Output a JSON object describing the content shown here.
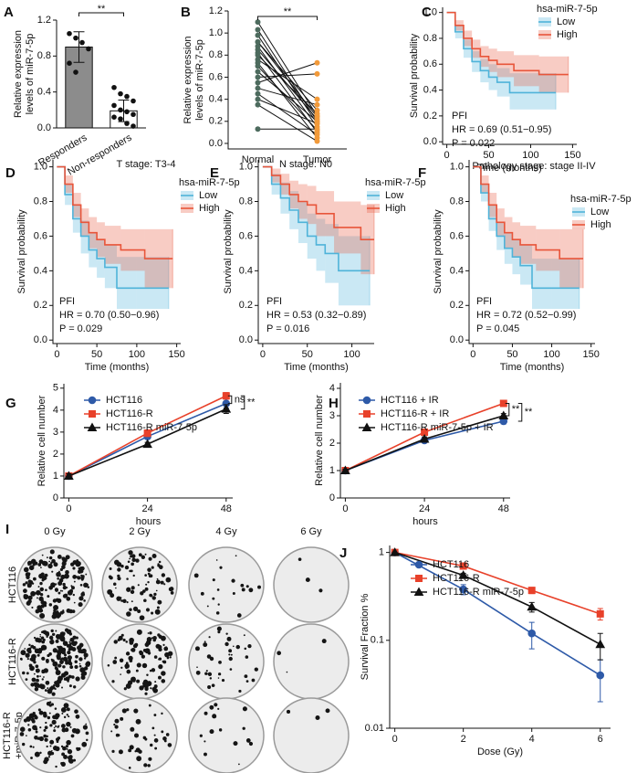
{
  "chart_data": [
    {
      "type": "bar",
      "panel_label": "A",
      "categories": [
        "Responders",
        "Non-responders"
      ],
      "values": [
        0.9,
        0.19
      ],
      "errors": [
        0.17,
        0.12
      ],
      "color": "#8c8c8c",
      "points": [
        [
          1.05,
          1.0,
          0.95,
          0.88,
          0.72,
          0.62
        ],
        [
          0.45,
          0.38,
          0.35,
          0.3,
          0.25,
          0.2,
          0.18,
          0.15,
          0.12,
          0.1,
          0.05,
          0.02
        ]
      ],
      "ylabel": [
        "Relative expression",
        "levels of miR-7-5p"
      ],
      "ylim": [
        0,
        1.2
      ],
      "yticks": [
        {
          "value": 0,
          "label": "0.0"
        },
        0.4,
        0.8,
        1.2
      ],
      "annotations": [
        "**"
      ]
    },
    {
      "type": "paired",
      "panel_label": "B",
      "categories": [
        "Normal",
        "Tumor"
      ],
      "point_colors": [
        "#4d6b5e",
        "#f29a3a"
      ],
      "normal": [
        1.1,
        1.03,
        0.98,
        0.92,
        0.88,
        0.85,
        0.82,
        0.8,
        0.76,
        0.73,
        0.7,
        0.65,
        0.6,
        0.55,
        0.5,
        0.45,
        0.4,
        0.35,
        0.13,
        0.92
      ],
      "tumor": [
        0.25,
        0.2,
        0.18,
        0.3,
        0.15,
        0.22,
        0.1,
        0.27,
        0.4,
        0.05,
        0.12,
        0.2,
        0.63,
        0.73,
        0.35,
        0.08,
        0.18,
        0.02,
        0.13,
        0.24
      ],
      "ylabel": [
        "Relative expression",
        "levels of miR-7-5p"
      ],
      "ylim": [
        -0.05,
        1.2
      ],
      "yticks": [
        {
          "value": 0,
          "label": "0.0"
        },
        0.2,
        0.4,
        0.6,
        0.8,
        {
          "value": 1,
          "label": "1.0"
        },
        1.2
      ],
      "annotations": [
        "**"
      ]
    },
    {
      "type": "survival",
      "panel_label": "C",
      "legend_title": "hsa-miR-7-5p",
      "annotations": [
        "PFI",
        "HR = 0.69 (0.51−0.95)",
        "P = 0.022"
      ],
      "xlabel": "Time (months)",
      "ylabel": "Survival probability",
      "xlim": [
        -5,
        155
      ],
      "xticks": [
        0,
        50,
        100,
        150
      ],
      "ylim": [
        -0.02,
        1.04
      ],
      "yticks": [
        {
          "value": 0,
          "label": "0.0"
        },
        0.2,
        0.4,
        0.6,
        0.8,
        {
          "value": 1,
          "label": "1.0"
        }
      ],
      "series": [
        {
          "name": "Low",
          "color": "#4fb3d9",
          "x": [
            0,
            10,
            20,
            30,
            40,
            50,
            60,
            75,
            100,
            130
          ],
          "values": [
            1,
            0.85,
            0.72,
            0.62,
            0.55,
            0.5,
            0.46,
            0.38,
            0.38,
            0.38
          ],
          "lower": [
            1,
            0.8,
            0.65,
            0.54,
            0.46,
            0.4,
            0.35,
            0.25,
            0.25,
            0.25
          ],
          "upper": [
            1,
            0.9,
            0.79,
            0.7,
            0.64,
            0.6,
            0.57,
            0.53,
            0.53,
            0.53
          ]
        },
        {
          "name": "High",
          "color": "#e8553a",
          "x": [
            0,
            10,
            20,
            30,
            40,
            50,
            60,
            80,
            110,
            145
          ],
          "values": [
            1,
            0.9,
            0.8,
            0.72,
            0.66,
            0.63,
            0.6,
            0.55,
            0.52,
            0.52
          ],
          "lower": [
            1,
            0.86,
            0.74,
            0.65,
            0.58,
            0.54,
            0.5,
            0.43,
            0.38,
            0.38
          ],
          "upper": [
            1,
            0.94,
            0.86,
            0.79,
            0.74,
            0.72,
            0.7,
            0.67,
            0.66,
            0.66
          ]
        }
      ]
    },
    {
      "type": "survival",
      "panel_label": "D",
      "subtitle": "T stage: T3-4",
      "legend_title": "hsa-miR-7-5p",
      "annotations": [
        "PFI",
        "HR = 0.70 (0.50−0.96)",
        "P = 0.029"
      ],
      "xlabel": "Time (months)",
      "ylabel": "Survival probability",
      "xlim": [
        -5,
        155
      ],
      "xticks": [
        0,
        50,
        100,
        150
      ],
      "ylim": [
        -0.02,
        1.04
      ],
      "yticks": [
        {
          "value": 0,
          "label": "0.0"
        },
        0.2,
        0.4,
        0.6,
        0.8,
        {
          "value": 1,
          "label": "1.0"
        }
      ],
      "series": [
        {
          "name": "Low",
          "color": "#4fb3d9",
          "x": [
            0,
            10,
            20,
            30,
            40,
            50,
            60,
            75,
            100,
            140
          ],
          "values": [
            1,
            0.84,
            0.7,
            0.6,
            0.52,
            0.47,
            0.42,
            0.3,
            0.3,
            0.3
          ],
          "lower": [
            1,
            0.78,
            0.62,
            0.5,
            0.42,
            0.36,
            0.3,
            0.18,
            0.18,
            0.18
          ],
          "upper": [
            1,
            0.9,
            0.78,
            0.69,
            0.62,
            0.58,
            0.55,
            0.48,
            0.48,
            0.48
          ]
        },
        {
          "name": "High",
          "color": "#e8553a",
          "x": [
            0,
            10,
            20,
            30,
            40,
            50,
            60,
            80,
            110,
            145
          ],
          "values": [
            1,
            0.9,
            0.78,
            0.68,
            0.62,
            0.58,
            0.55,
            0.52,
            0.47,
            0.47
          ],
          "lower": [
            1,
            0.85,
            0.71,
            0.6,
            0.53,
            0.48,
            0.44,
            0.4,
            0.3,
            0.3
          ],
          "upper": [
            1,
            0.95,
            0.85,
            0.76,
            0.71,
            0.68,
            0.66,
            0.64,
            0.64,
            0.64
          ]
        }
      ]
    },
    {
      "type": "survival",
      "panel_label": "E",
      "subtitle": "N stage: N0",
      "legend_title": "hsa-miR-7-5p",
      "annotations": [
        "PFI",
        "HR = 0.53 (0.32−0.89)",
        "P = 0.016"
      ],
      "xlabel": "Time (months)",
      "ylabel": "Survival probability",
      "xlim": [
        -5,
        125
      ],
      "xticks": [
        0,
        50,
        100
      ],
      "ylim": [
        -0.02,
        1.04
      ],
      "yticks": [
        {
          "value": 0,
          "label": "0.0"
        },
        0.2,
        0.4,
        0.6,
        0.8,
        {
          "value": 1,
          "label": "1.0"
        }
      ],
      "series": [
        {
          "name": "Low",
          "color": "#4fb3d9",
          "x": [
            0,
            10,
            20,
            30,
            40,
            50,
            60,
            70,
            85,
            120
          ],
          "values": [
            1,
            0.9,
            0.82,
            0.75,
            0.68,
            0.6,
            0.55,
            0.5,
            0.4,
            0.4
          ],
          "lower": [
            1,
            0.84,
            0.73,
            0.64,
            0.56,
            0.47,
            0.4,
            0.33,
            0.2,
            0.2
          ],
          "upper": [
            1,
            0.96,
            0.91,
            0.86,
            0.8,
            0.73,
            0.7,
            0.67,
            0.6,
            0.6
          ]
        },
        {
          "name": "High",
          "color": "#e8553a",
          "x": [
            0,
            10,
            20,
            30,
            40,
            50,
            60,
            80,
            110,
            125
          ],
          "values": [
            1,
            0.95,
            0.9,
            0.84,
            0.8,
            0.78,
            0.73,
            0.65,
            0.58,
            0.58
          ],
          "lower": [
            1,
            0.91,
            0.84,
            0.76,
            0.7,
            0.67,
            0.6,
            0.5,
            0.38,
            0.38
          ],
          "upper": [
            1,
            0.99,
            0.96,
            0.92,
            0.9,
            0.89,
            0.86,
            0.8,
            0.78,
            0.78
          ]
        }
      ]
    },
    {
      "type": "survival",
      "panel_label": "F",
      "subtitle": "Pathology stage: stage II-IV",
      "legend_title": "hsa-miR-7-5p",
      "annotations": [
        "PFI",
        "HR = 0.72 (0.52−0.99)",
        "P = 0.045"
      ],
      "xlabel": "Time (months)",
      "ylabel": "Survival probability",
      "xlim": [
        -5,
        155
      ],
      "xticks": [
        0,
        50,
        100,
        150
      ],
      "ylim": [
        -0.02,
        1.04
      ],
      "yticks": [
        {
          "value": 0,
          "label": "0.0"
        },
        0.2,
        0.4,
        0.6,
        0.8,
        {
          "value": 1,
          "label": "1.0"
        }
      ],
      "series": [
        {
          "name": "Low",
          "color": "#4fb3d9",
          "x": [
            0,
            10,
            20,
            30,
            40,
            50,
            60,
            75,
            100,
            135
          ],
          "values": [
            1,
            0.85,
            0.7,
            0.6,
            0.53,
            0.48,
            0.43,
            0.3,
            0.3,
            0.3
          ],
          "lower": [
            1,
            0.8,
            0.63,
            0.52,
            0.44,
            0.38,
            0.32,
            0.18,
            0.18,
            0.18
          ],
          "upper": [
            1,
            0.9,
            0.78,
            0.68,
            0.62,
            0.58,
            0.55,
            0.47,
            0.47,
            0.47
          ]
        },
        {
          "name": "High",
          "color": "#e8553a",
          "x": [
            0,
            10,
            20,
            30,
            40,
            50,
            60,
            80,
            110,
            140
          ],
          "values": [
            1,
            0.9,
            0.78,
            0.68,
            0.62,
            0.58,
            0.55,
            0.52,
            0.47,
            0.47
          ],
          "lower": [
            1,
            0.85,
            0.71,
            0.6,
            0.53,
            0.48,
            0.44,
            0.4,
            0.3,
            0.3
          ],
          "upper": [
            1,
            0.95,
            0.85,
            0.76,
            0.71,
            0.68,
            0.66,
            0.64,
            0.64,
            0.64
          ]
        }
      ]
    },
    {
      "type": "line",
      "panel_label": "G",
      "x": [
        0,
        24,
        48
      ],
      "xlabel": "hours",
      "ylabel": "Relative cell number",
      "xlim": [
        -1.5,
        50
      ],
      "xticks": [
        0,
        24,
        48
      ],
      "ylim": [
        0,
        5.2
      ],
      "yticks": [
        0,
        1,
        2,
        3,
        4,
        5
      ],
      "annotations": [
        "ns",
        "**"
      ],
      "series": [
        {
          "name": "HCT116",
          "color": "#2e5aa8",
          "marker": "circle",
          "values": [
            1,
            2.8,
            4.3
          ],
          "errors": [
            0.1,
            0.1,
            0.2
          ]
        },
        {
          "name": "HCT116-R",
          "color": "#e8412a",
          "marker": "square",
          "values": [
            1,
            2.95,
            4.65
          ],
          "errors": [
            0.1,
            0.15,
            0.15
          ]
        },
        {
          "name": "HCT116-R miR-7-5p",
          "color": "#111111",
          "marker": "triangle",
          "values": [
            1,
            2.45,
            4.05
          ],
          "errors": [
            0.1,
            0.08,
            0.2
          ]
        }
      ]
    },
    {
      "type": "line",
      "panel_label": "H",
      "x": [
        0,
        24,
        48
      ],
      "xlabel": "hours",
      "ylabel": "Relative cell number",
      "xlim": [
        -1.5,
        50
      ],
      "xticks": [
        0,
        24,
        48
      ],
      "ylim": [
        0,
        4.2
      ],
      "yticks": [
        0,
        1,
        2,
        3,
        4
      ],
      "annotations": [
        "**",
        "**"
      ],
      "series": [
        {
          "name": "HCT116 + IR",
          "color": "#2e5aa8",
          "marker": "circle",
          "values": [
            1,
            2.1,
            2.8
          ],
          "errors": [
            0.05,
            0.08,
            0.1
          ]
        },
        {
          "name": "HCT116-R + IR",
          "color": "#e8412a",
          "marker": "square",
          "values": [
            1,
            2.4,
            3.45
          ],
          "errors": [
            0.05,
            0.1,
            0.05
          ]
        },
        {
          "name": "HCT116-R miR-7-5p + IR",
          "color": "#111111",
          "marker": "triangle",
          "values": [
            1,
            2.15,
            3.0
          ],
          "errors": [
            0.05,
            0.08,
            0.08
          ]
        }
      ]
    },
    {
      "type": "line",
      "panel_label": "J",
      "log_scale": true,
      "x": [
        0,
        2,
        4,
        6
      ],
      "xlabel": "Dose (Gy)",
      "ylabel": "Survival Fraction %",
      "xlim": [
        -0.15,
        6.3
      ],
      "xticks": [
        0,
        2,
        4,
        6
      ],
      "ylim": [
        0.01,
        1.2
      ],
      "yticks": [
        0.01,
        0.1,
        1
      ],
      "series": [
        {
          "name": "HCT116",
          "color": "#2e5aa8",
          "marker": "circle",
          "values": [
            1,
            0.38,
            0.12,
            0.04
          ],
          "errors": [
            0,
            0.05,
            0.04,
            0.02
          ]
        },
        {
          "name": "HCT116-R",
          "color": "#e8412a",
          "marker": "square",
          "values": [
            1,
            0.7,
            0.37,
            0.2
          ],
          "errors": [
            0,
            0.04,
            0.03,
            0.03
          ]
        },
        {
          "name": "HCT116-R miR-7-5p",
          "color": "#111111",
          "marker": "triangle",
          "values": [
            1,
            0.55,
            0.24,
            0.09
          ],
          "errors": [
            0,
            0.03,
            0.03,
            0.03
          ]
        }
      ]
    }
  ],
  "colony_panel": {
    "panel_label": "I",
    "columns": [
      "0 Gy",
      "2 Gy",
      "4 Gy",
      "6 Gy"
    ],
    "rows": [
      [
        "HCT116"
      ],
      [
        "HCT116-R"
      ],
      [
        "HCT116-R",
        "+miR-7-5p"
      ]
    ]
  }
}
